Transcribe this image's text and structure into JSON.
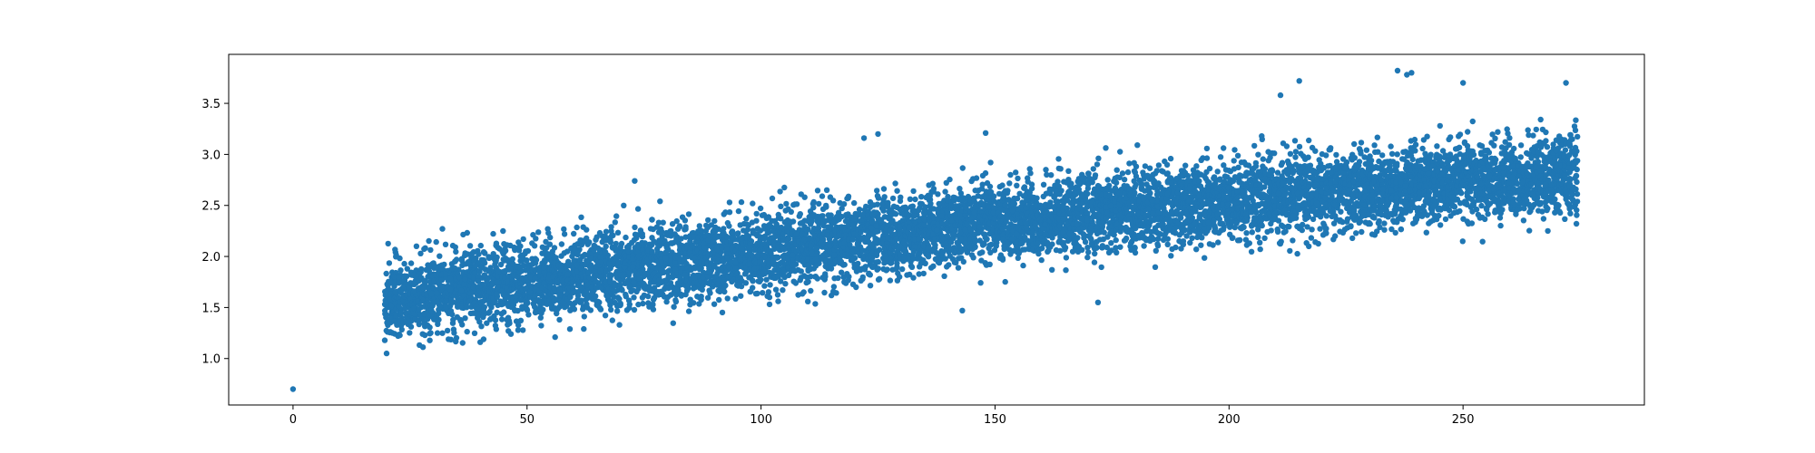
{
  "chart_data": {
    "type": "scatter",
    "title": "",
    "xlabel": "",
    "ylabel": "",
    "xlim": [
      -13.75,
      288.75
    ],
    "ylim": [
      0.545,
      3.98
    ],
    "xticks": [
      0,
      50,
      100,
      150,
      200,
      250
    ],
    "yticks": [
      1.0,
      1.5,
      2.0,
      2.5,
      3.0,
      3.5
    ],
    "x_tick_labels": [
      "0",
      "50",
      "100",
      "150",
      "200",
      "250"
    ],
    "y_tick_labels": [
      "1.0",
      "1.5",
      "2.0",
      "2.5",
      "3.0",
      "3.5"
    ],
    "grid": false,
    "legend": "none",
    "marker_color": "#1f77b4",
    "series": [
      {
        "x_range": [
          20,
          274
        ],
        "points_per_x": 34,
        "trend_points": [
          [
            20,
            1.56
          ],
          [
            50,
            1.75
          ],
          [
            100,
            2.04
          ],
          [
            150,
            2.33
          ],
          [
            200,
            2.55
          ],
          [
            250,
            2.72
          ],
          [
            274,
            2.8
          ]
        ],
        "spread_sd": 0.19,
        "outliers": [
          [
            0,
            0.7
          ],
          [
            211,
            3.58
          ],
          [
            215,
            3.72
          ],
          [
            236,
            3.82
          ],
          [
            238,
            3.78
          ],
          [
            239,
            3.8
          ],
          [
            250,
            3.7
          ],
          [
            272,
            3.7
          ],
          [
            122,
            3.16
          ],
          [
            125,
            3.2
          ],
          [
            73,
            2.74
          ],
          [
            148,
            3.21
          ],
          [
            143,
            1.47
          ],
          [
            172,
            1.55
          ],
          [
            40,
            1.16
          ],
          [
            56,
            1.21
          ],
          [
            20,
            1.05
          ]
        ]
      }
    ]
  }
}
